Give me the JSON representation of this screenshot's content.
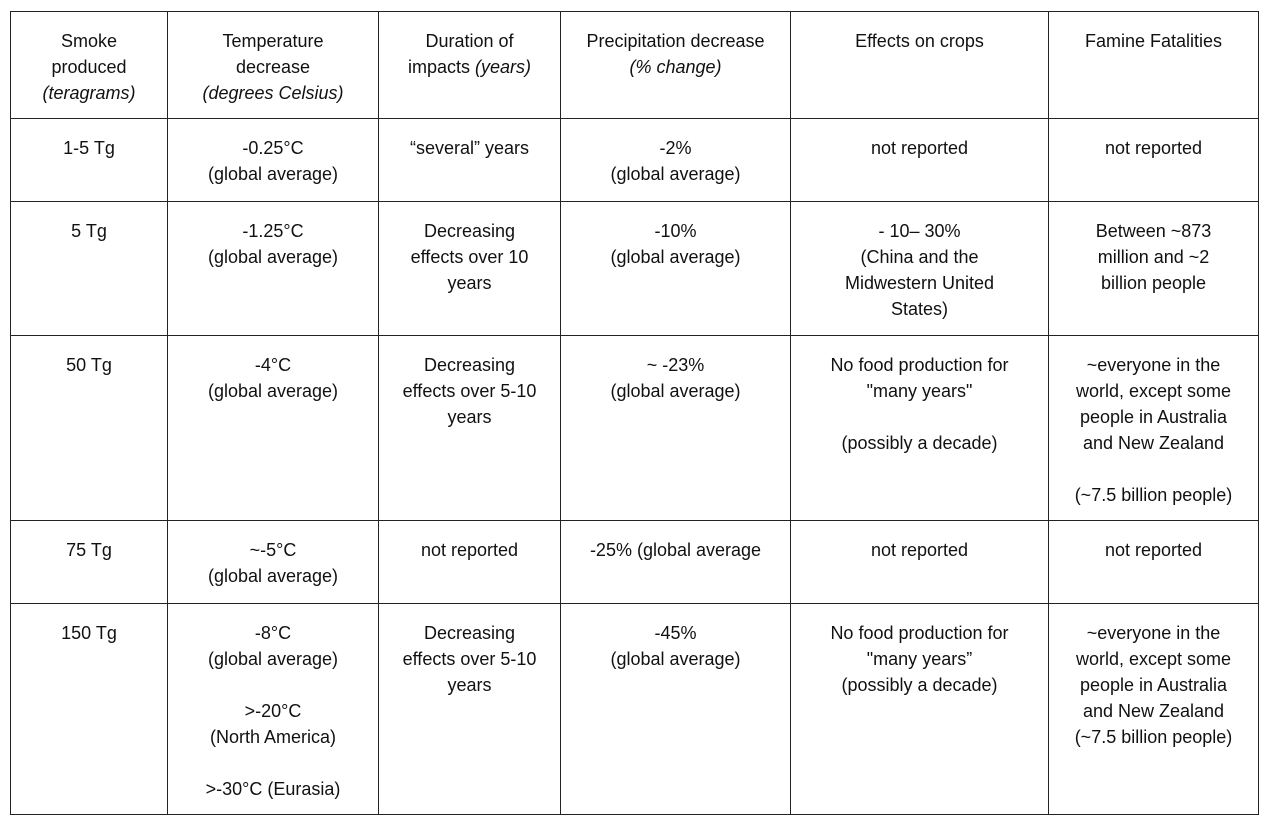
{
  "table": {
    "header": [
      {
        "lines": [
          "Smoke",
          "produced"
        ],
        "unit": "(teragrams)",
        "unit_inline": false
      },
      {
        "lines": [
          "Temperature",
          "decrease"
        ],
        "unit": "(degrees Celsius)",
        "unit_inline": false
      },
      {
        "lines": [
          "Duration of",
          "impacts"
        ],
        "unit": "(years)",
        "unit_inline": true
      },
      {
        "lines": [
          "Precipitation decrease"
        ],
        "unit": "(% change)",
        "unit_inline": false
      },
      {
        "lines": [
          "Effects on crops"
        ]
      },
      {
        "lines": [
          "Famine Fatalities"
        ]
      }
    ],
    "rows": [
      [
        [
          [
            "1-5 Tg"
          ]
        ],
        [
          [
            "-0.25°C",
            "(global average)"
          ]
        ],
        [
          [
            "“several” years"
          ]
        ],
        [
          [
            "-2%",
            "(global average)"
          ]
        ],
        [
          [
            "not reported"
          ]
        ],
        [
          [
            "not reported"
          ]
        ]
      ],
      [
        [
          [
            "5 Tg"
          ]
        ],
        [
          [
            "-1.25°C",
            "(global average)"
          ]
        ],
        [
          [
            "Decreasing",
            "effects over 10",
            "years"
          ]
        ],
        [
          [
            "-10%",
            "(global average)"
          ]
        ],
        [
          [
            "- 10– 30%",
            "(China and the",
            "Midwestern United",
            "States)"
          ]
        ],
        [
          [
            "Between ~873",
            "million and ~2",
            "billion people"
          ]
        ]
      ],
      [
        [
          [
            "50 Tg"
          ]
        ],
        [
          [
            "-4°C",
            "(global average)"
          ]
        ],
        [
          [
            "Decreasing",
            "effects over 5-10",
            "years"
          ]
        ],
        [
          [
            "~ -23%",
            "(global average)"
          ]
        ],
        [
          [
            "No food production for",
            "\"many years\""
          ],
          [
            "(possibly a decade)"
          ]
        ],
        [
          [
            "~everyone in the",
            "world, except some",
            "people in Australia",
            "and New Zealand"
          ],
          [
            "(~7.5 billion people)"
          ]
        ]
      ],
      [
        [
          [
            "75 Tg"
          ]
        ],
        [
          [
            "~-5°C",
            "(global average)"
          ]
        ],
        [
          [
            "not reported"
          ]
        ],
        [
          [
            "-25% (global average"
          ]
        ],
        [
          [
            "not reported"
          ]
        ],
        [
          [
            "not reported"
          ]
        ]
      ],
      [
        [
          [
            "150 Tg"
          ]
        ],
        [
          [
            "-8°C",
            "(global average)"
          ],
          [
            ">-20°C",
            "(North America)"
          ],
          [
            ">-30°C (Eurasia)"
          ]
        ],
        [
          [
            "Decreasing",
            "effects over 5-10",
            "years"
          ]
        ],
        [
          [
            "-45%",
            "(global average)"
          ]
        ],
        [
          [
            "No food production for",
            "\"many years”",
            "(possibly a decade)"
          ]
        ],
        [
          [
            "~everyone in the",
            "world, except some",
            "people in Australia",
            "and New Zealand",
            "(~7.5 billion people)"
          ]
        ]
      ]
    ]
  }
}
